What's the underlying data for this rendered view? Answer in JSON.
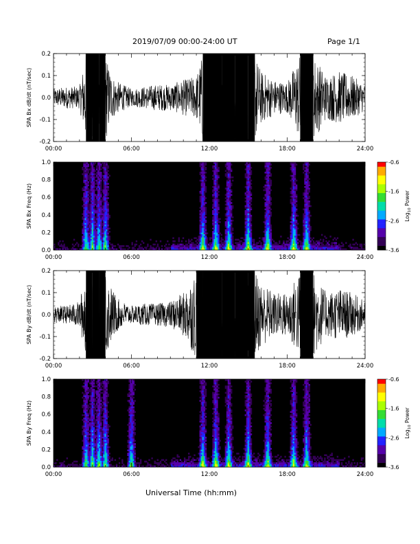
{
  "header": {
    "title": "2019/07/09  00:00-24:00 UT",
    "page": "Page 1/1"
  },
  "x_axis_title": "Universal Time (hh:mm)",
  "colors": {
    "trace": "#000000",
    "spectrogram_background": "#000000",
    "colormap": [
      "#000000",
      "#330055",
      "#5500aa",
      "#2222ff",
      "#00aaff",
      "#00ddaa",
      "#33dd33",
      "#aaff00",
      "#ffff00",
      "#ffaa00",
      "#ff0000"
    ]
  },
  "chart_data": [
    {
      "id": "bx-trace",
      "type": "line",
      "ylabel": "SPA Bx dB/dt (nT/sec)",
      "x_ticks": [
        "00:00",
        "06:00",
        "12:00",
        "18:00",
        "24:00"
      ],
      "x_range_hours": [
        0,
        24
      ],
      "ylim": [
        -0.2,
        0.2
      ],
      "y_ticks": [
        "0.2",
        "0.1",
        "0.0",
        "-0.1",
        "-0.2"
      ],
      "series": [
        {
          "x_hours": [
            0,
            1,
            2,
            2.5,
            3,
            3.5,
            4,
            4.5,
            5,
            6,
            7,
            8,
            9,
            10,
            11,
            11.5,
            12,
            13,
            14,
            15,
            15.5,
            16,
            17,
            18,
            19,
            20,
            21,
            22,
            23,
            24
          ],
          "amplitude": [
            0.04,
            0.05,
            0.05,
            0.2,
            0.2,
            0.2,
            0.2,
            0.1,
            0.07,
            0.04,
            0.05,
            0.06,
            0.06,
            0.08,
            0.1,
            0.2,
            0.2,
            0.2,
            0.2,
            0.2,
            0.2,
            0.12,
            0.08,
            0.07,
            0.2,
            0.2,
            0.1,
            0.12,
            0.1,
            0.06
          ]
        }
      ]
    },
    {
      "id": "bx-spectrogram",
      "type": "heatmap",
      "ylabel": "SPA Bx Freq (Hz)",
      "x_ticks": [
        "00:00",
        "06:00",
        "12:00",
        "18:00",
        "24:00"
      ],
      "x_range_hours": [
        0,
        24
      ],
      "ylim": [
        0,
        1.0
      ],
      "y_ticks": [
        "1.0",
        "0.8",
        "0.6",
        "0.4",
        "0.2",
        "0.0"
      ],
      "colorbar": {
        "label": "Log10 Power",
        "label_base": "Log",
        "label_sub": "10",
        "label_rest": " Power",
        "range": [
          -3.6,
          -0.6
        ],
        "ticks": [
          "-0.6",
          "-1.6",
          "-2.6",
          "-3.6"
        ]
      },
      "activity_hours": [
        2.5,
        3.0,
        3.5,
        4.0,
        11.5,
        12.5,
        13.5,
        15.0,
        16.5,
        18.5,
        19.5
      ]
    },
    {
      "id": "by-trace",
      "type": "line",
      "ylabel": "SPA By dB/dt (nT/sec)",
      "x_ticks": [
        "00:00",
        "06:00",
        "12:00",
        "18:00",
        "24:00"
      ],
      "x_range_hours": [
        0,
        24
      ],
      "ylim": [
        -0.2,
        0.2
      ],
      "y_ticks": [
        "0.2",
        "0.1",
        "0.0",
        "-0.1",
        "-0.2"
      ],
      "series": [
        {
          "x_hours": [
            0,
            1,
            2,
            2.5,
            3,
            3.5,
            4,
            4.5,
            5,
            6,
            7,
            8,
            9,
            10,
            11,
            11.5,
            12,
            13,
            14,
            15,
            15.5,
            16,
            17,
            18,
            19,
            20,
            21,
            22,
            23,
            24
          ],
          "amplitude": [
            0.04,
            0.04,
            0.06,
            0.2,
            0.2,
            0.2,
            0.2,
            0.12,
            0.07,
            0.04,
            0.05,
            0.05,
            0.06,
            0.1,
            0.2,
            0.2,
            0.2,
            0.2,
            0.2,
            0.2,
            0.2,
            0.15,
            0.1,
            0.1,
            0.2,
            0.2,
            0.1,
            0.12,
            0.1,
            0.06
          ]
        }
      ]
    },
    {
      "id": "by-spectrogram",
      "type": "heatmap",
      "ylabel": "SPA By Freq (Hz)",
      "x_ticks": [
        "00:00",
        "06:00",
        "12:00",
        "18:00",
        "24:00"
      ],
      "x_range_hours": [
        0,
        24
      ],
      "ylim": [
        0,
        1.0
      ],
      "y_ticks": [
        "1.0",
        "0.8",
        "0.6",
        "0.4",
        "0.2",
        "0.0"
      ],
      "colorbar": {
        "label": "Log10 Power",
        "label_base": "Log",
        "label_sub": "10",
        "label_rest": " Power",
        "range": [
          -3.6,
          -0.6
        ],
        "ticks": [
          "-0.6",
          "-1.6",
          "-2.6",
          "-3.6"
        ]
      },
      "activity_hours": [
        2.5,
        3.0,
        3.5,
        4.0,
        6.0,
        11.5,
        12.5,
        13.5,
        15.0,
        16.5,
        18.5,
        19.5
      ]
    }
  ]
}
